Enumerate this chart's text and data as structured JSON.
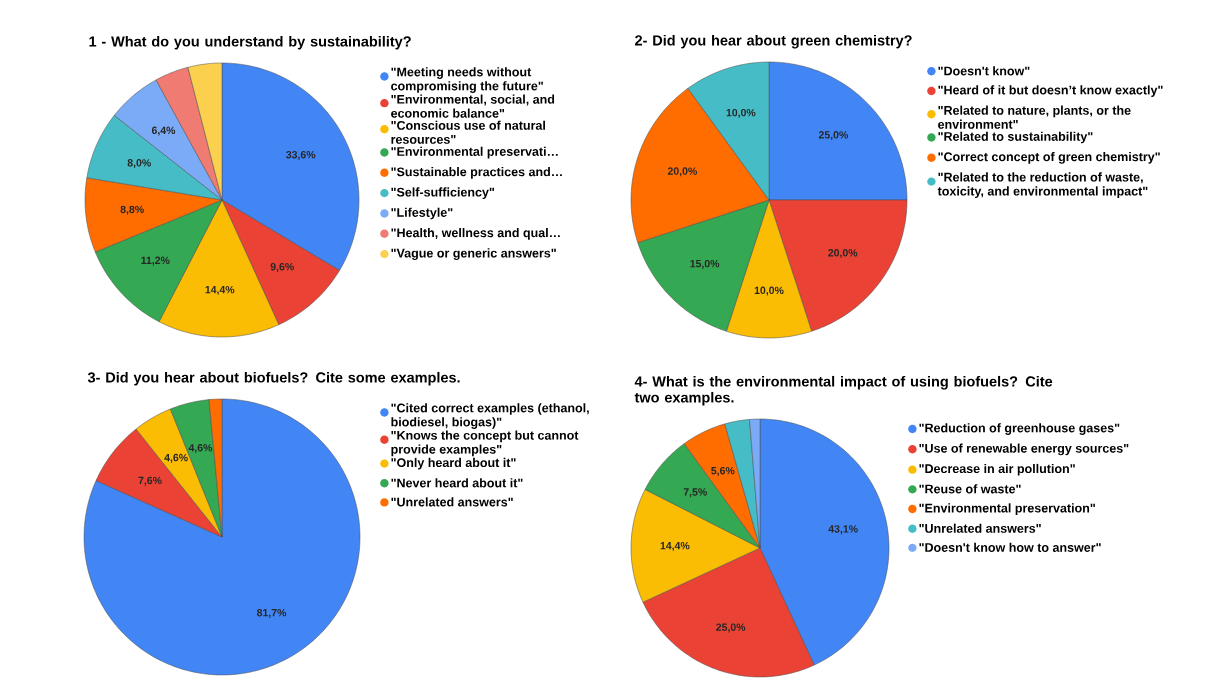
{
  "chart_data": [
    {
      "type": "pie",
      "title": "1 - What do you understand by sustainability?",
      "legend": "right",
      "categories": [
        "\"Meeting needs without compromising the future\"",
        "\"Environmental, social, and economic balance\"",
        "\"Conscious use of natural resources\"",
        "\"Environmental preservati…",
        "\"Sustainable practices and…",
        "\"Self-sufficiency\"",
        "\"Lifestyle\"",
        "\"Health, wellness and qual…",
        "\"Vague or generic answers\""
      ],
      "values": [
        33.6,
        9.6,
        14.4,
        11.2,
        8.8,
        8.0,
        6.4,
        4.0,
        4.0
      ],
      "value_labels": [
        "33,6%",
        "9,6%",
        "14,4%",
        "11,2%",
        "8,8%",
        "8,0%",
        "6,4%",
        null,
        null
      ],
      "colors": [
        "#4285f4",
        "#ea4335",
        "#fbbc04",
        "#34a853",
        "#ff6d01",
        "#46bdc6",
        "#7baaf7",
        "#f07b72",
        "#fcd04f"
      ]
    },
    {
      "type": "pie",
      "title": "2- Did you hear about green chemistry?",
      "legend": "right",
      "categories": [
        "\"Doesn't know\"",
        "\"Heard of it but doesn’t know exactly\"",
        "\"Related to nature, plants, or the environment\"",
        "\"Related to sustainability\"",
        "\"Correct concept of green chemistry\"",
        "\"Related to the reduction of waste, toxicity, and environmental impact\""
      ],
      "values": [
        25.0,
        20.0,
        10.0,
        15.0,
        20.0,
        10.0
      ],
      "value_labels": [
        "25,0%",
        "20,0%",
        "10,0%",
        "15,0%",
        "20,0%",
        "10,0%"
      ],
      "colors": [
        "#4285f4",
        "#ea4335",
        "#fbbc04",
        "#34a853",
        "#ff6d01",
        "#46bdc6"
      ]
    },
    {
      "type": "pie",
      "title": "3- Did you hear about biofuels? Cite some examples.",
      "legend": "right",
      "categories": [
        "\"Cited correct examples (ethanol, biodiesel, biogas)\"",
        "\"Knows the concept but cannot provide examples\"",
        "\"Only heard about it\"",
        "\"Never heard about it\"",
        "\"Unrelated answers\""
      ],
      "values": [
        81.7,
        7.6,
        4.6,
        4.6,
        1.5
      ],
      "value_labels": [
        "81,7%",
        "7,6%",
        "4,6%",
        "4,6%",
        null
      ],
      "colors": [
        "#4285f4",
        "#ea4335",
        "#fbbc04",
        "#34a853",
        "#ff6d01"
      ]
    },
    {
      "type": "pie",
      "title": "4- What is the environmental impact of using biofuels? Cite two examples.",
      "legend": "right",
      "categories": [
        "\"Reduction of greenhouse gases\"",
        "\"Use of renewable energy sources\"",
        "\"Decrease in air pollution\"",
        "\"Reuse of waste\"",
        "\"Environmental preservation\"",
        "\"Unrelated answers\"",
        "\"Doesn't know how to answer\""
      ],
      "values": [
        43.1,
        25.0,
        14.4,
        7.5,
        5.6,
        3.1,
        1.3
      ],
      "value_labels": [
        "43,1%",
        "25,0%",
        "14,4%",
        "7,5%",
        "5,6%",
        null,
        null
      ],
      "colors": [
        "#4285f4",
        "#ea4335",
        "#fbbc04",
        "#34a853",
        "#ff6d01",
        "#46bdc6",
        "#7baaf7"
      ]
    }
  ]
}
